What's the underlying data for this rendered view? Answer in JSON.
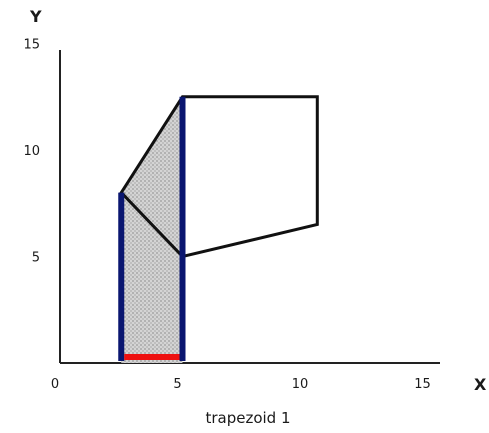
{
  "figure": {
    "axes": {
      "x_name": "X",
      "y_name": "Y",
      "x_ticks": [
        "0",
        "5",
        "10",
        "15"
      ],
      "y_ticks": [
        "5",
        "10",
        "15"
      ],
      "x_range": [
        0,
        15
      ],
      "y_range": [
        0,
        15
      ]
    },
    "polygon": {
      "vertices": [
        [
          2.5,
          8
        ],
        [
          5,
          12.5
        ],
        [
          10.5,
          12.5
        ],
        [
          10.5,
          6.5
        ],
        [
          5,
          5
        ]
      ],
      "stroke_color": "#111111"
    },
    "trapezoid": {
      "vertices": [
        [
          2.5,
          0
        ],
        [
          2.5,
          8
        ],
        [
          5,
          12.5
        ],
        [
          5,
          0
        ]
      ],
      "fill_color": "#c8c8c8"
    },
    "highlights": {
      "vertical_sides_color": "#0a1670",
      "base_color": "#ee1111"
    },
    "caption": "trapezoid 1"
  }
}
